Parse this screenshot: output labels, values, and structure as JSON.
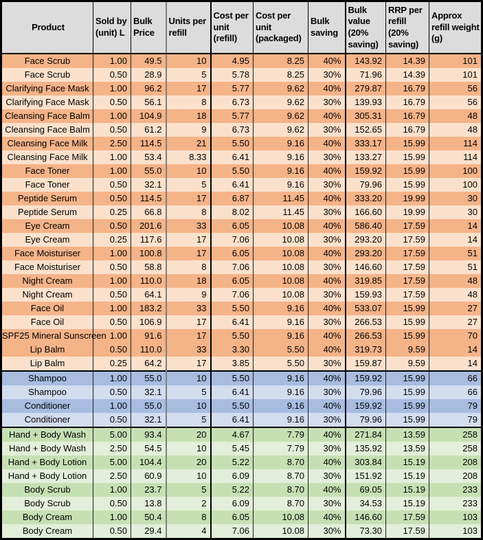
{
  "colors": {
    "header_bg": "#dcdcdc",
    "outer_border": "#000000",
    "face_row_dark": "#f5b388",
    "face_row_light": "#fbe1cc",
    "hair_row_dark": "#a8bce0",
    "hair_row_light": "#d3ddf0",
    "body_row_dark": "#c6e0b4",
    "body_row_light": "#e2efda"
  },
  "chart_data": {
    "type": "table",
    "title": "",
    "columns": [
      "Product",
      "Sold by (unit) L",
      "Bulk Price",
      "Units per refill",
      "Cost per unit (refill)",
      "Cost per unit (packaged)",
      "Bulk saving",
      "Bulk value (20% saving)",
      "RRP per refill (20% saving)",
      "Approx refill weight (g)"
    ],
    "sections": [
      {
        "name": "face",
        "row_color_dark": "#f5b388",
        "row_color_light": "#fbe1cc",
        "rows": [
          {
            "shade": "dark",
            "cells": [
              "Face Scrub",
              "1.00",
              "49.5",
              "10",
              "4.95",
              "8.25",
              "40%",
              "143.92",
              "14.39",
              "101"
            ]
          },
          {
            "shade": "light",
            "cells": [
              "Face Scrub",
              "0.50",
              "28.9",
              "5",
              "5.78",
              "8.25",
              "30%",
              "71.96",
              "14.39",
              "101"
            ]
          },
          {
            "shade": "dark",
            "cells": [
              "Clarifying Face Mask",
              "1.00",
              "96.2",
              "17",
              "5.77",
              "9.62",
              "40%",
              "279.87",
              "16.79",
              "56"
            ]
          },
          {
            "shade": "light",
            "cells": [
              "Clarifying Face Mask",
              "0.50",
              "56.1",
              "8",
              "6.73",
              "9.62",
              "30%",
              "139.93",
              "16.79",
              "56"
            ]
          },
          {
            "shade": "dark",
            "cells": [
              "Cleansing Face Balm",
              "1.00",
              "104.9",
              "18",
              "5.77",
              "9.62",
              "40%",
              "305.31",
              "16.79",
              "48"
            ]
          },
          {
            "shade": "light",
            "cells": [
              "Cleansing Face Balm",
              "0.50",
              "61.2",
              "9",
              "6.73",
              "9.62",
              "30%",
              "152.65",
              "16.79",
              "48"
            ]
          },
          {
            "shade": "dark",
            "cells": [
              "Cleansing Face Milk",
              "2.50",
              "114.5",
              "21",
              "5.50",
              "9.16",
              "40%",
              "333.17",
              "15.99",
              "114"
            ]
          },
          {
            "shade": "light",
            "cells": [
              "Cleansing Face Milk",
              "1.00",
              "53.4",
              "8.33",
              "6.41",
              "9.16",
              "30%",
              "133.27",
              "15.99",
              "114"
            ]
          },
          {
            "shade": "dark",
            "cells": [
              "Face Toner",
              "1.00",
              "55.0",
              "10",
              "5.50",
              "9.16",
              "40%",
              "159.92",
              "15.99",
              "100"
            ]
          },
          {
            "shade": "light",
            "cells": [
              "Face Toner",
              "0.50",
              "32.1",
              "5",
              "6.41",
              "9.16",
              "30%",
              "79.96",
              "15.99",
              "100"
            ]
          },
          {
            "shade": "dark",
            "cells": [
              "Peptide Serum",
              "0.50",
              "114.5",
              "17",
              "6.87",
              "11.45",
              "40%",
              "333.20",
              "19.99",
              "30"
            ]
          },
          {
            "shade": "light",
            "cells": [
              "Peptide Serum",
              "0.25",
              "66.8",
              "8",
              "8.02",
              "11.45",
              "30%",
              "166.60",
              "19.99",
              "30"
            ]
          },
          {
            "shade": "dark",
            "cells": [
              "Eye Cream",
              "0.50",
              "201.6",
              "33",
              "6.05",
              "10.08",
              "40%",
              "586.40",
              "17.59",
              "14"
            ]
          },
          {
            "shade": "light",
            "cells": [
              "Eye Cream",
              "0.25",
              "117.6",
              "17",
              "7.06",
              "10.08",
              "30%",
              "293.20",
              "17.59",
              "14"
            ]
          },
          {
            "shade": "dark",
            "cells": [
              "Face Moisturiser",
              "1.00",
              "100.8",
              "17",
              "6.05",
              "10.08",
              "40%",
              "293.20",
              "17.59",
              "51"
            ]
          },
          {
            "shade": "light",
            "cells": [
              "Face Moisturiser",
              "0.50",
              "58.8",
              "8",
              "7.06",
              "10.08",
              "30%",
              "146.60",
              "17.59",
              "51"
            ]
          },
          {
            "shade": "dark",
            "cells": [
              "Night Cream",
              "1.00",
              "110.0",
              "18",
              "6.05",
              "10.08",
              "40%",
              "319.85",
              "17.59",
              "48"
            ]
          },
          {
            "shade": "light",
            "cells": [
              "Night Cream",
              "0.50",
              "64.1",
              "9",
              "7.06",
              "10.08",
              "30%",
              "159.93",
              "17.59",
              "48"
            ]
          },
          {
            "shade": "dark",
            "cells": [
              "Face Oil",
              "1.00",
              "183.2",
              "33",
              "5.50",
              "9.16",
              "40%",
              "533.07",
              "15.99",
              "27"
            ]
          },
          {
            "shade": "light",
            "cells": [
              "Face Oil",
              "0.50",
              "106.9",
              "17",
              "6.41",
              "9.16",
              "30%",
              "266.53",
              "15.99",
              "27"
            ]
          },
          {
            "shade": "dark",
            "cells": [
              "SPF25 Mineral Sunscreen",
              "1.00",
              "91.6",
              "17",
              "5.50",
              "9.16",
              "40%",
              "266.53",
              "15.99",
              "70"
            ]
          },
          {
            "shade": "dark",
            "cells": [
              "Lip Balm",
              "0.50",
              "110.0",
              "33",
              "3.30",
              "5.50",
              "40%",
              "319.73",
              "9.59",
              "14"
            ]
          },
          {
            "shade": "light",
            "cells": [
              "Lip Balm",
              "0.25",
              "64.2",
              "17",
              "3.85",
              "5.50",
              "30%",
              "159.87",
              "9.59",
              "14"
            ]
          }
        ]
      },
      {
        "name": "hair",
        "row_color_dark": "#a8bce0",
        "row_color_light": "#d3ddf0",
        "rows": [
          {
            "shade": "dark",
            "cells": [
              "Shampoo",
              "1.00",
              "55.0",
              "10",
              "5.50",
              "9.16",
              "40%",
              "159.92",
              "15.99",
              "66"
            ]
          },
          {
            "shade": "light",
            "cells": [
              "Shampoo",
              "0.50",
              "32.1",
              "5",
              "6.41",
              "9.16",
              "30%",
              "79.96",
              "15.99",
              "66"
            ]
          },
          {
            "shade": "dark",
            "cells": [
              "Conditioner",
              "1.00",
              "55.0",
              "10",
              "5.50",
              "9.16",
              "40%",
              "159.92",
              "15.99",
              "79"
            ]
          },
          {
            "shade": "light",
            "cells": [
              "Conditioner",
              "0.50",
              "32.1",
              "5",
              "6.41",
              "9.16",
              "30%",
              "79.96",
              "15.99",
              "79"
            ]
          }
        ]
      },
      {
        "name": "body",
        "row_color_dark": "#c6e0b4",
        "row_color_light": "#e2efda",
        "rows": [
          {
            "shade": "dark",
            "cells": [
              "Hand + Body Wash",
              "5.00",
              "93.4",
              "20",
              "4.67",
              "7.79",
              "40%",
              "271.84",
              "13.59",
              "258"
            ]
          },
          {
            "shade": "light",
            "cells": [
              "Hand + Body Wash",
              "2.50",
              "54.5",
              "10",
              "5.45",
              "7.79",
              "30%",
              "135.92",
              "13.59",
              "258"
            ]
          },
          {
            "shade": "dark",
            "cells": [
              "Hand + Body Lotion",
              "5.00",
              "104.4",
              "20",
              "5.22",
              "8.70",
              "40%",
              "303.84",
              "15.19",
              "208"
            ]
          },
          {
            "shade": "light",
            "cells": [
              "Hand + Body Lotion",
              "2.50",
              "60.9",
              "10",
              "6.09",
              "8.70",
              "30%",
              "151.92",
              "15.19",
              "208"
            ]
          },
          {
            "shade": "dark",
            "cells": [
              "Body Scrub",
              "1.00",
              "23.7",
              "5",
              "5.22",
              "8.70",
              "40%",
              "69.05",
              "15.19",
              "233"
            ]
          },
          {
            "shade": "light",
            "cells": [
              "Body Scrub",
              "0.50",
              "13.8",
              "2",
              "6.09",
              "8.70",
              "30%",
              "34.53",
              "15.19",
              "233"
            ]
          },
          {
            "shade": "dark",
            "cells": [
              "Body Cream",
              "1.00",
              "50.4",
              "8",
              "6.05",
              "10.08",
              "40%",
              "146.60",
              "17.59",
              "103"
            ]
          },
          {
            "shade": "light",
            "cells": [
              "Body Cream",
              "0.50",
              "29.4",
              "4",
              "7.06",
              "10.08",
              "30%",
              "73.30",
              "17.59",
              "103"
            ]
          }
        ]
      }
    ]
  }
}
